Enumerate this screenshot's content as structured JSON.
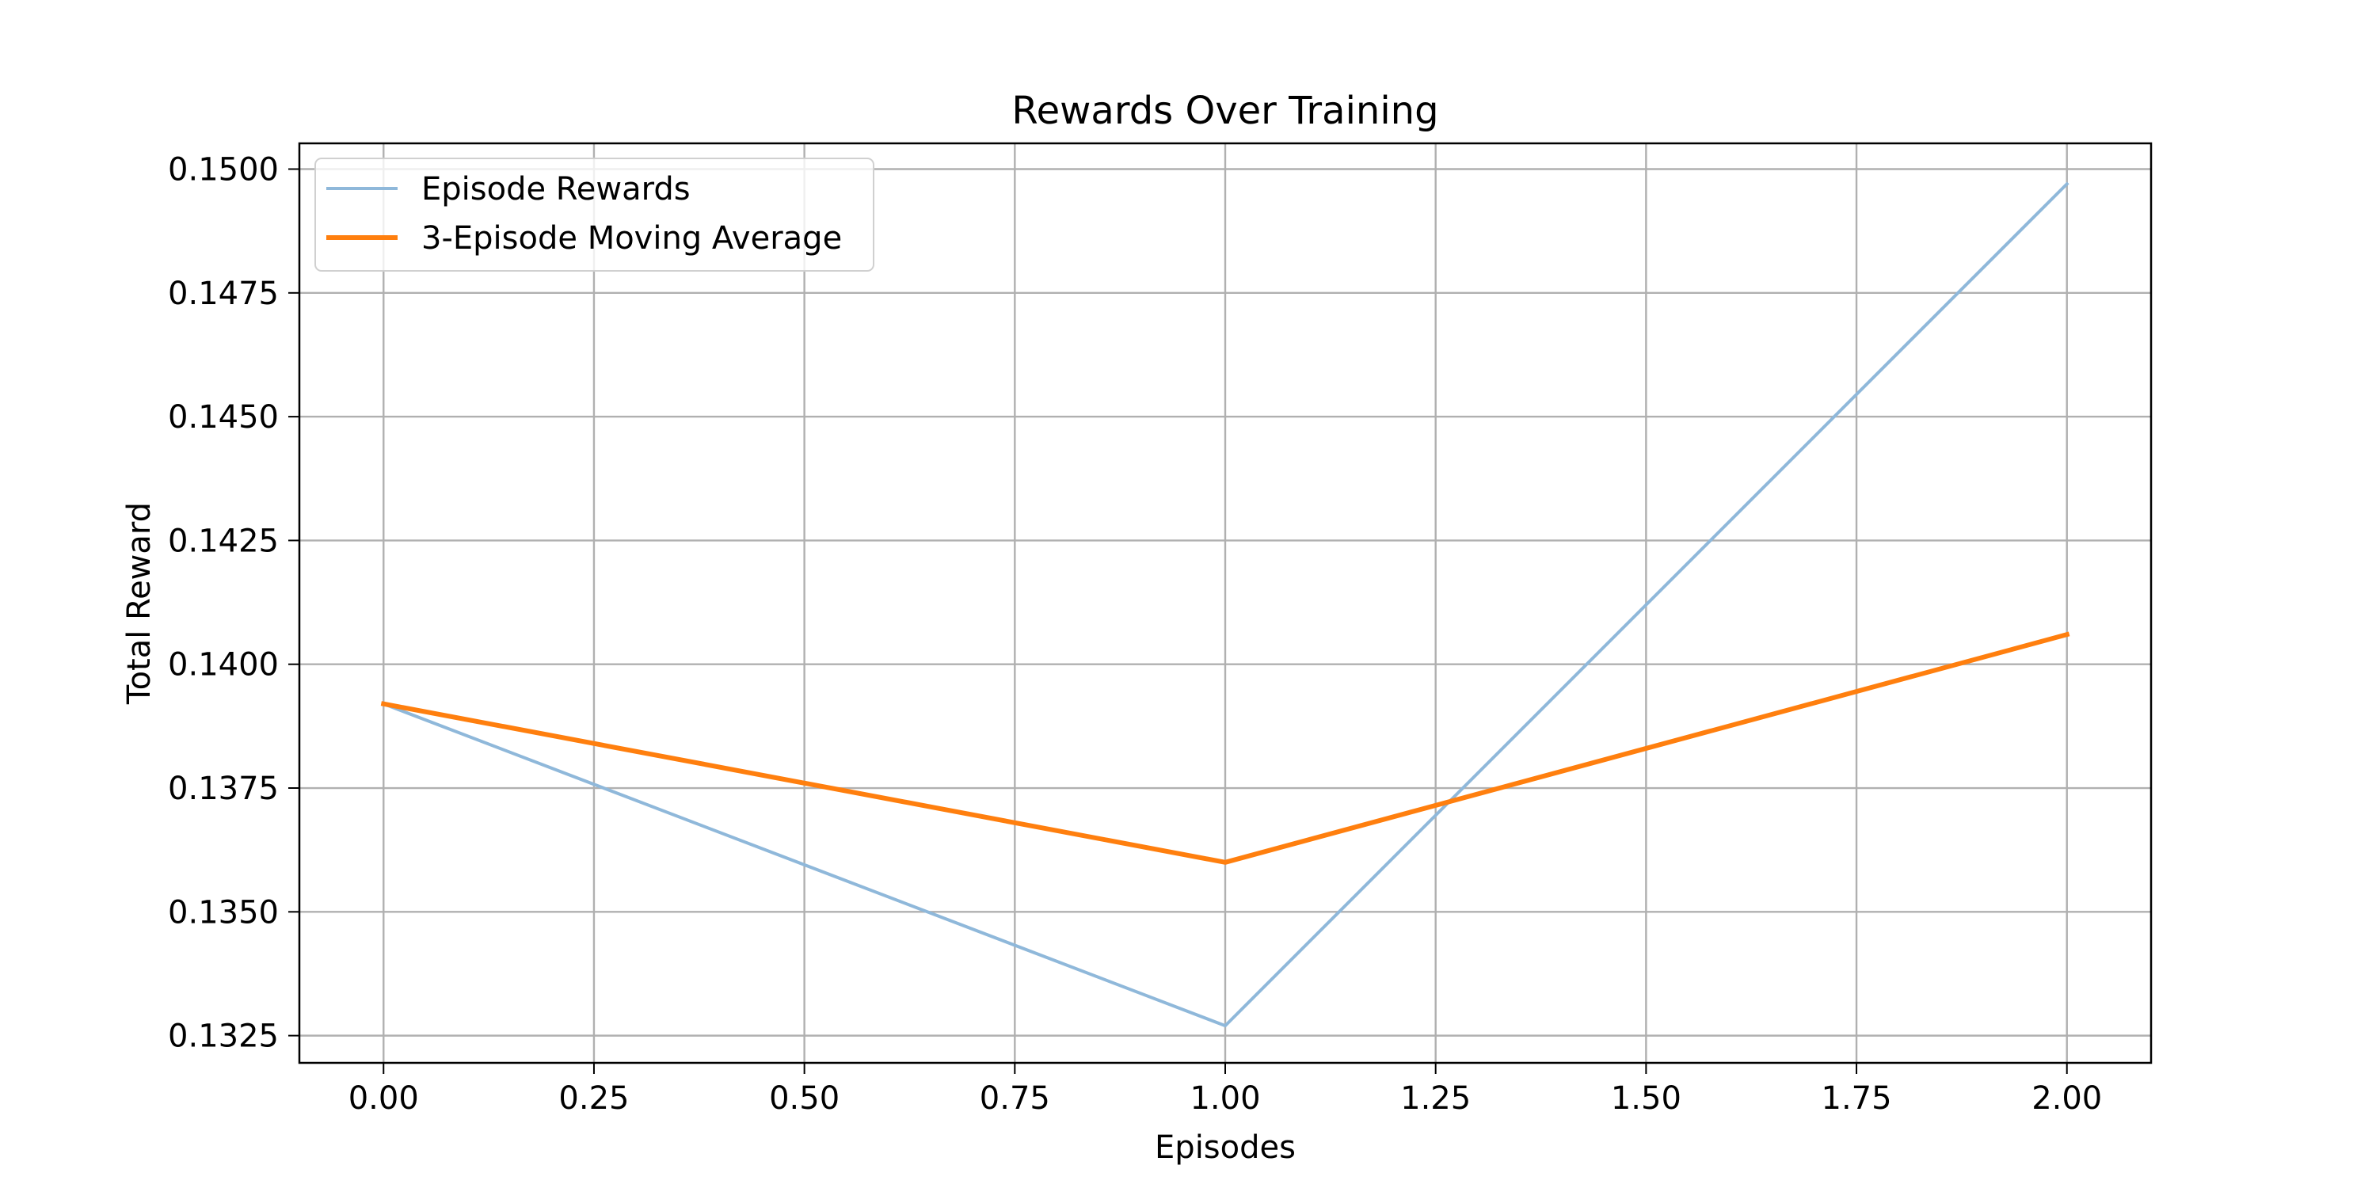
{
  "chart_data": {
    "type": "line",
    "title": "Rewards Over Training",
    "xlabel": "Episodes",
    "ylabel": "Total Reward",
    "xlim": [
      -0.1,
      2.1
    ],
    "ylim": [
      0.13195,
      0.15052
    ],
    "x_ticks": [
      0.0,
      0.25,
      0.5,
      0.75,
      1.0,
      1.25,
      1.5,
      1.75,
      2.0
    ],
    "x_tick_labels": [
      "0.00",
      "0.25",
      "0.50",
      "0.75",
      "1.00",
      "1.25",
      "1.50",
      "1.75",
      "2.00"
    ],
    "y_ticks": [
      0.1325,
      0.135,
      0.1375,
      0.14,
      0.1425,
      0.145,
      0.1475,
      0.15
    ],
    "y_tick_labels": [
      "0.1325",
      "0.1350",
      "0.1375",
      "0.1400",
      "0.1425",
      "0.1450",
      "0.1475",
      "0.1500"
    ],
    "grid": true,
    "legend_position": "top-left",
    "x": [
      0,
      1,
      2
    ],
    "series": [
      {
        "name": "Episode Rewards",
        "values": [
          0.1392,
          0.1327,
          0.1497
        ],
        "color": "#8fb8da"
      },
      {
        "name": "3-Episode Moving Average",
        "values": [
          0.1392,
          0.136,
          0.1406
        ],
        "color": "#ff7f0e"
      }
    ]
  }
}
